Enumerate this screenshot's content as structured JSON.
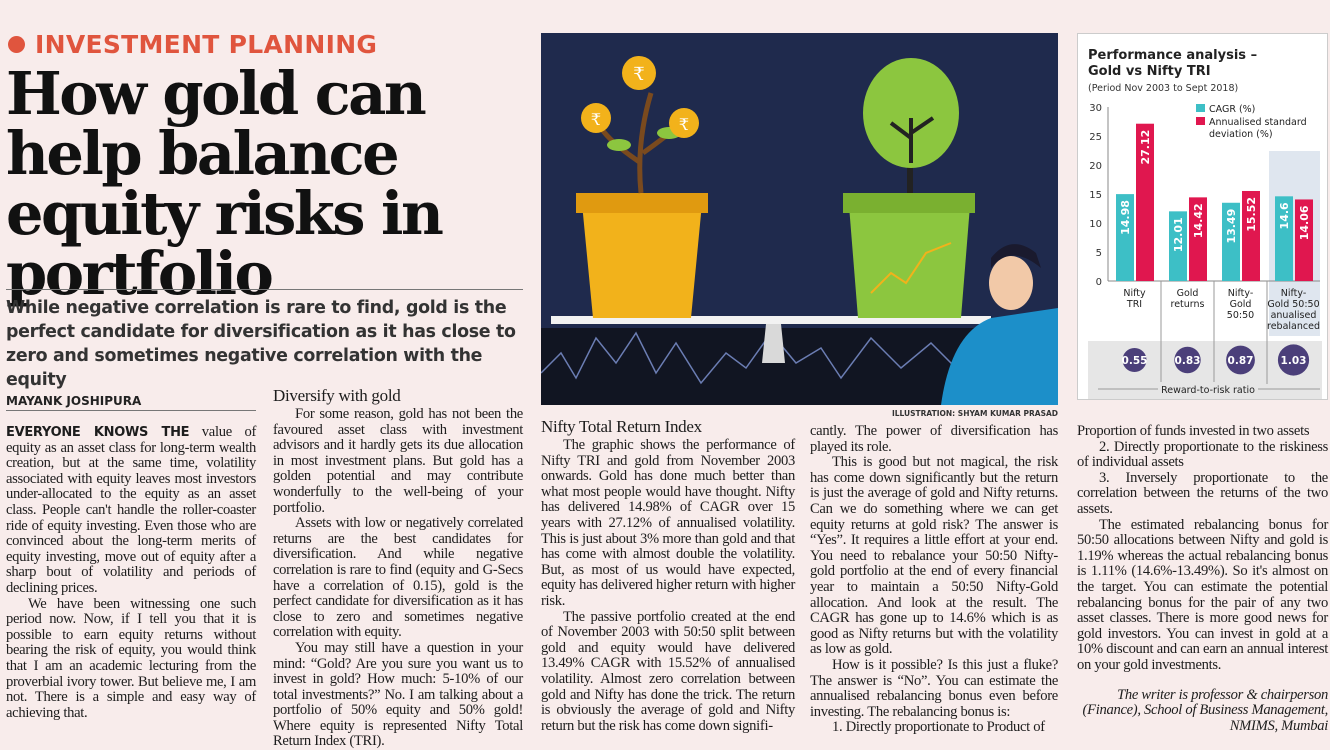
{
  "kicker": "INVESTMENT PLANNING",
  "headline": "How gold can help balance equity risks in portfolio",
  "deck": "While negative correlation is rare to find, gold is the perfect candidate for diversification as it has close to zero and sometimes negative correlation with the equity",
  "byline": "MAYANK JOSHIPURA",
  "illustration_credit": "ILLUSTRATION: SHYAM KUMAR PRASAD",
  "illustration": {
    "bg": "#1f2a4d",
    "pot_left": "#f2b21b",
    "pot_right": "#8cc63f",
    "coin": "#f2b21b",
    "coin_symbol": "₹"
  },
  "columns": {
    "c1": {
      "lead": "EVERYONE KNOWS THE",
      "p1": " value of equity as an asset class for long-term wealth creation, but at the same time, volatility associated with equity leaves most investors under-allocated to the equity as an asset class. People can't handle the roller-coaster ride of equity investing. Even those who are convinced about the long-term merits of equity investing, move out of equity after a sharp bout of volatility and periods of declining prices.",
      "p2": "We have been witnessing one such period now. Now, if I tell you that it is possible to earn equity returns without bearing the risk of equity, you would think that I am an academic lecturing from the proverbial ivory tower. But believe me, I am not. There is a simple and easy way of achieving that."
    },
    "c2": {
      "heading": "Diversify with gold",
      "p1": "For some reason, gold has not been the favoured asset class with investment advisors and it hardly gets its due allocation in most investment plans. But gold has a golden potential and may contribute wonderfully to the well-being of your portfolio.",
      "p2": "Assets with low or negatively correlated returns are the best candidates for diversification. And while negative correlation is rare to find (equity and G-Secs have a correlation of 0.15), gold is the perfect candidate for diversification as it has close to zero and sometimes negative correlation with equity.",
      "p3": "You may still have a question in your mind: “Gold? Are you sure you want us to invest in gold? How much: 5-10% of our total investments?” No. I am talking about a portfolio of 50% equity and 50% gold! Where equity is represented Nifty Total Return Index (TRI)."
    },
    "c3": {
      "heading": "Nifty Total Return Index",
      "p1": "The graphic shows the performance of Nifty TRI and gold from November 2003 onwards. Gold has done much better than what most people would have thought. Nifty has delivered 14.98% of CAGR over 15 years with 27.12% of annualised volatility. This is just about 3% more than gold and that has come with almost double the volatility. But, as most of us would have expected, equity has delivered higher return with higher risk.",
      "p2": "The passive portfolio created at the end of November 2003 with 50:50 split between gold and equity would have delivered 13.49% CAGR with 15.52% of annualised volatility. Almost zero correlation between gold and Nifty has done the trick. The return is obviously the average of gold and Nifty return but the risk has come down signifi-"
    },
    "c4": {
      "p0": "cantly. The power of diversification has played its role.",
      "p1": "This is good but not magical, the risk has come down significantly but the return is just the average of gold and Nifty returns. Can we do something where we can get equity returns at gold risk? The answer is “Yes”. It requires a little effort at your end. You need to rebalance your 50:50 Nifty-gold portfolio at the end of every financial year to maintain a 50:50 Nifty-Gold allocation. And look at the result. The CAGR has gone up to 14.6% which is as good as Nifty returns but with the volatility as low as gold.",
      "p2": "How is it possible? Is this just a fluke? The answer is “No”. You can estimate the annualised rebalancing bonus even before investing. The rebalancing bonus is:",
      "p3": "1. Directly proportionate to Product of"
    },
    "c5": {
      "p0": "Proportion of funds invested in two assets",
      "p1": "2. Directly proportionate to the riskiness of individual assets",
      "p2": "3. Inversely proportionate to the correlation between the returns of the two assets.",
      "p3": "The estimated rebalancing bonus for 50:50 allocations between Nifty and gold is 1.19% whereas the actual rebalancing bonus is 1.11% (14.6%-13.49%). So it's almost on the target. You can estimate the potential rebalancing bonus for the pair of any two asset classes. There is more good news for gold investors. You can invest in gold at a 10% discount and can earn an annual interest on your gold investments.",
      "sig": "The writer is professor & chairperson (Finance), School of Business Management, NMIMS, Mumbai"
    }
  },
  "chart_data": {
    "type": "bar",
    "title": "Performance analysis – Gold vs Nifty TRI",
    "subtitle": "(Period Nov 2003 to Sept 2018)",
    "categories": [
      "Nifty TRI",
      "Gold returns",
      "Nifty-Gold 50:50",
      "Nifty-Gold 50:50 anualised rebalanced"
    ],
    "series": [
      {
        "name": "CAGR (%)",
        "color": "#3dbfc6",
        "values": [
          14.98,
          12.01,
          13.49,
          14.6
        ]
      },
      {
        "name": "Annualised standard deviation (%)",
        "color": "#e0174f",
        "values": [
          27.12,
          14.42,
          15.52,
          14.06
        ]
      }
    ],
    "ylim": [
      0,
      30
    ],
    "yticks": [
      0,
      5,
      10,
      15,
      20,
      25,
      30
    ],
    "legend": "top-right",
    "highlighted_category": "Nifty-Gold 50:50 anualised rebalanced",
    "reward_to_risk": {
      "label": "Reward-to-risk ratio",
      "values": [
        "0.55",
        "0.83",
        "0.87",
        "1.03"
      ],
      "color": "#4b3f7a"
    }
  }
}
